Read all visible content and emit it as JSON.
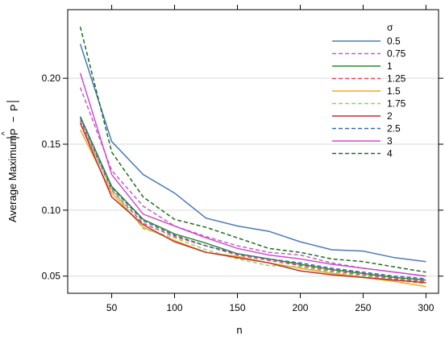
{
  "chart_data": {
    "type": "line",
    "title": "",
    "xlabel": "n",
    "ylabel_prefix": "Average Maximum",
    "ylabel_hat": "^",
    "ylabel_p1": "P",
    "ylabel_minus": "−",
    "ylabel_p2": "P",
    "xlim": [
      15,
      310
    ],
    "ylim": [
      0.037,
      0.252
    ],
    "xticks": [
      50,
      100,
      150,
      200,
      250,
      300
    ],
    "yticks": [
      0.05,
      0.1,
      0.15,
      0.2
    ],
    "ytick_labels": [
      "0.05",
      "0.10",
      "0.15",
      "0.20"
    ],
    "grid": "horizontal",
    "legend_title": "σ",
    "legend_position": "top-right",
    "x": [
      25,
      50,
      75,
      100,
      125,
      150,
      175,
      200,
      225,
      250,
      275,
      300
    ],
    "series": [
      {
        "name": "0.5",
        "color": "#4a7ab7",
        "dash": "solid",
        "values": [
          0.226,
          0.152,
          0.127,
          0.113,
          0.094,
          0.088,
          0.084,
          0.076,
          0.07,
          0.069,
          0.064,
          0.061
        ]
      },
      {
        "name": "0.75",
        "color": "#c45cc4",
        "dash": "dashed",
        "values": [
          0.193,
          0.13,
          0.103,
          0.088,
          0.08,
          0.073,
          0.068,
          0.066,
          0.06,
          0.056,
          0.053,
          0.05
        ]
      },
      {
        "name": "1",
        "color": "#2b8a2b",
        "dash": "solid",
        "values": [
          0.171,
          0.118,
          0.093,
          0.082,
          0.075,
          0.067,
          0.063,
          0.059,
          0.055,
          0.052,
          0.049,
          0.047
        ]
      },
      {
        "name": "1.25",
        "color": "#e04b63",
        "dash": "dashed",
        "values": [
          0.168,
          0.115,
          0.09,
          0.08,
          0.073,
          0.066,
          0.062,
          0.058,
          0.054,
          0.051,
          0.048,
          0.046
        ]
      },
      {
        "name": "1.5",
        "color": "#f5a623",
        "dash": "solid",
        "values": [
          0.161,
          0.113,
          0.087,
          0.077,
          0.068,
          0.065,
          0.06,
          0.056,
          0.052,
          0.049,
          0.046,
          0.042
        ]
      },
      {
        "name": "1.75",
        "color": "#8ed26e",
        "dash": "dashed",
        "values": [
          0.166,
          0.116,
          0.086,
          0.079,
          0.07,
          0.063,
          0.058,
          0.057,
          0.053,
          0.05,
          0.047,
          0.044
        ]
      },
      {
        "name": "2",
        "color": "#b83232",
        "dash": "solid",
        "values": [
          0.166,
          0.11,
          0.089,
          0.076,
          0.068,
          0.064,
          0.06,
          0.054,
          0.051,
          0.049,
          0.047,
          0.045
        ]
      },
      {
        "name": "2.5",
        "color": "#3f66b0",
        "dash": "dashed",
        "values": [
          0.17,
          0.117,
          0.092,
          0.081,
          0.073,
          0.067,
          0.063,
          0.06,
          0.056,
          0.053,
          0.05,
          0.048
        ]
      },
      {
        "name": "3",
        "color": "#cc4fcc",
        "dash": "solid",
        "values": [
          0.204,
          0.127,
          0.097,
          0.088,
          0.079,
          0.071,
          0.066,
          0.063,
          0.059,
          0.056,
          0.053,
          0.05
        ]
      },
      {
        "name": "4",
        "color": "#1f6b1f",
        "dash": "dashed",
        "values": [
          0.239,
          0.144,
          0.11,
          0.093,
          0.087,
          0.079,
          0.071,
          0.068,
          0.063,
          0.061,
          0.057,
          0.053
        ]
      }
    ]
  }
}
